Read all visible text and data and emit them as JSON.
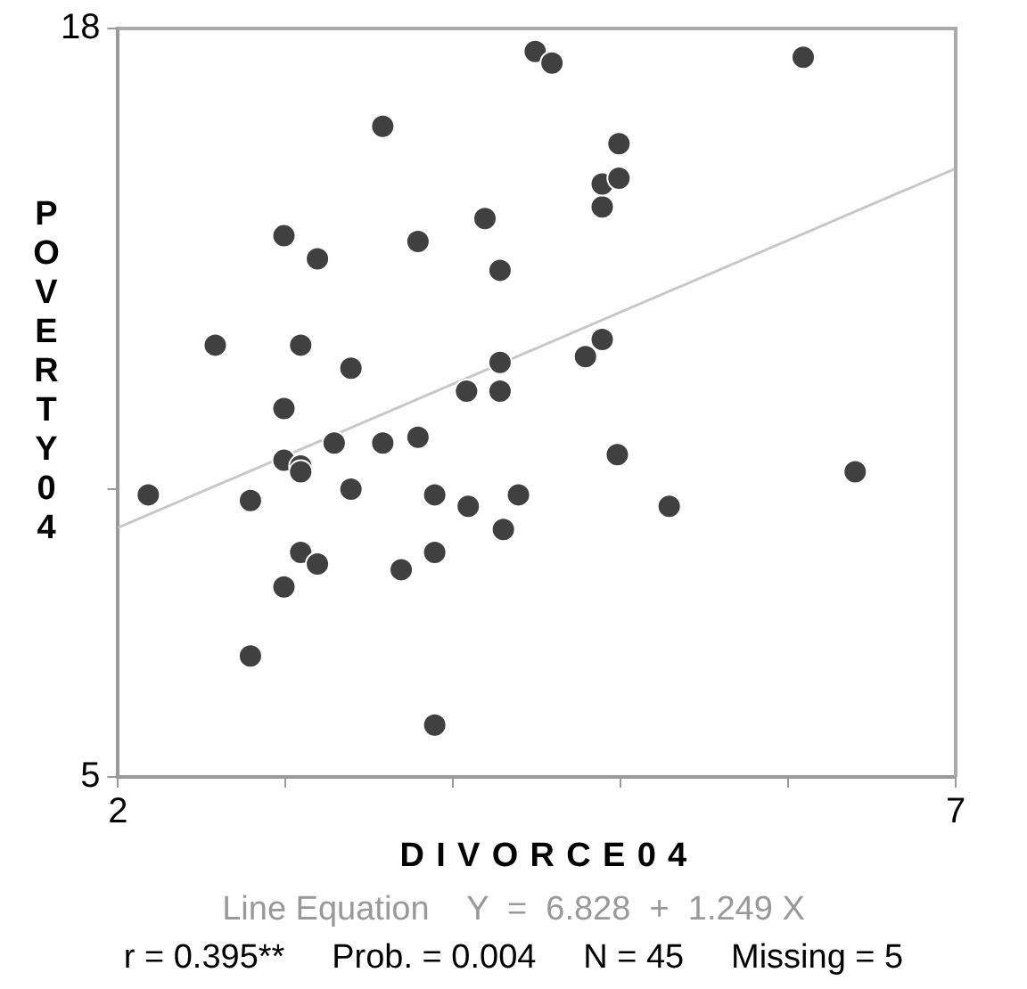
{
  "chart_data": {
    "type": "scatter",
    "xlabel": "DIVORCE04",
    "ylabel": "POVERTY04",
    "xlim": [
      2,
      7
    ],
    "ylim": [
      5,
      18
    ],
    "xticks": [
      2,
      {
        "value": 3,
        "label": null
      },
      {
        "value": 4,
        "label": null
      },
      {
        "value": 5,
        "label": null
      },
      {
        "value": 6,
        "label": null
      },
      7
    ],
    "yticks": [
      5,
      {
        "value": 10,
        "label": null
      },
      18
    ],
    "legend": false,
    "series": [
      {
        "marker": "circle",
        "color": "#404040",
        "x": [
          2.18,
          2.58,
          2.79,
          2.79,
          2.99,
          2.99,
          2.99,
          2.99,
          3.09,
          3.09,
          3.09,
          3.09,
          3.19,
          3.19,
          3.29,
          3.39,
          3.39,
          3.58,
          3.58,
          3.69,
          3.79,
          3.79,
          3.89,
          3.89,
          3.89,
          4.08,
          4.09,
          4.19,
          4.28,
          4.28,
          4.28,
          4.3,
          4.39,
          4.49,
          4.59,
          4.79,
          4.89,
          4.89,
          4.89,
          4.99,
          4.99,
          4.98,
          5.29,
          6.09,
          6.4
        ],
        "values": [
          9.9,
          12.5,
          9.8,
          7.1,
          14.4,
          11.4,
          10.5,
          8.3,
          10.4,
          10.3,
          12.5,
          8.9,
          14.0,
          8.7,
          10.8,
          12.1,
          10.0,
          16.3,
          10.8,
          8.6,
          14.3,
          10.9,
          9.9,
          8.9,
          5.9,
          11.7,
          9.7,
          14.7,
          13.8,
          12.2,
          11.7,
          9.3,
          9.9,
          17.6,
          17.4,
          12.3,
          14.9,
          15.3,
          12.6,
          15.4,
          16.0,
          10.6,
          9.7,
          17.5,
          10.3
        ]
      },
      {
        "type": "line",
        "marker": "none",
        "color": "#c8c8c8",
        "x": [
          2,
          7
        ],
        "values": [
          9.33,
          15.57
        ]
      }
    ],
    "annotations": [
      "Line Equation    Y  =  6.828  +  1.249 X",
      "r = 0.395**     Prob. = 0.004     N = 45     Missing = 5"
    ]
  }
}
